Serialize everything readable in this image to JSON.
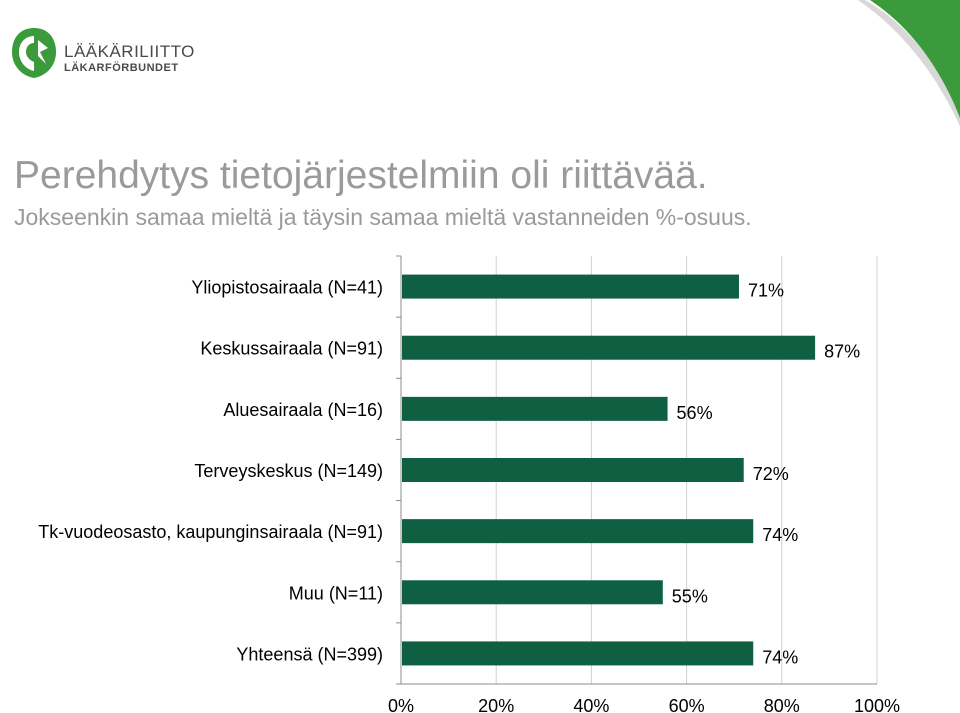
{
  "logo": {
    "name": "LÄÄKÄRILIITTO",
    "subname": "LÄKARFÖRBUNDET"
  },
  "colors": {
    "bar": "#0f5f43",
    "accent": "#3b9a3b",
    "title": "#9a9a9a"
  },
  "chart_data": {
    "type": "bar",
    "orientation": "horizontal",
    "title": "Perehdytys tietojärjestelmiin oli riittävää.",
    "subtitle": "Jokseenkin samaa mieltä ja täysin samaa mieltä vastanneiden %-osuus.",
    "categories": [
      "Yliopistosairaala (N=41)",
      "Keskussairaala (N=91)",
      "Aluesairaala (N=16)",
      "Terveyskeskus (N=149)",
      "Tk-vuodeosasto, kaupunginsairaala (N=91)",
      "Muu (N=11)",
      "Yhteensä (N=399)"
    ],
    "values": [
      71,
      87,
      56,
      72,
      74,
      55,
      74
    ],
    "value_labels": [
      "71%",
      "87%",
      "56%",
      "72%",
      "74%",
      "55%",
      "74%"
    ],
    "xlim": [
      0,
      100
    ],
    "xticks": [
      "0%",
      "20%",
      "40%",
      "60%",
      "80%",
      "100%"
    ],
    "grid": true,
    "legend": "none"
  }
}
